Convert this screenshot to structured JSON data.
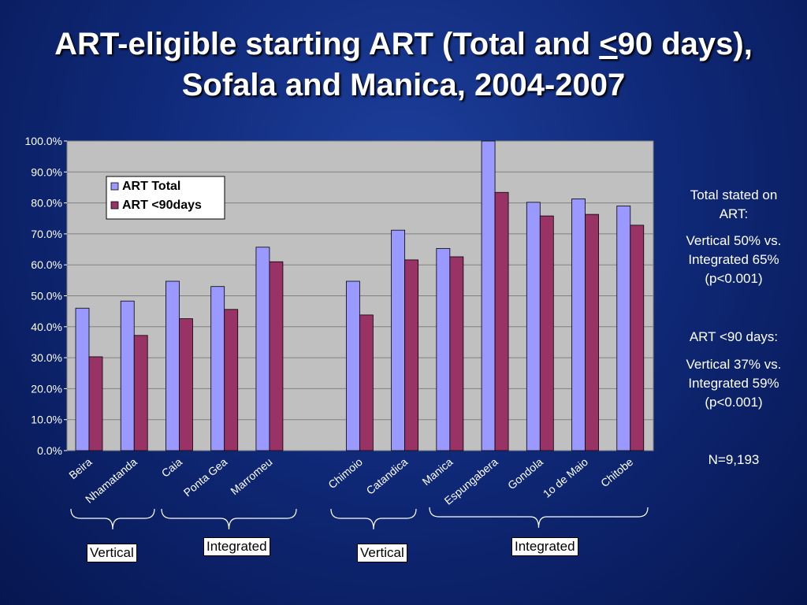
{
  "slide": {
    "title_part1": "ART-eligible starting ART (Total and ",
    "title_underline": "<",
    "title_part2": "90 days), Sofala and Manica, 2004-2007"
  },
  "notes": {
    "total_heading": "Total stated on ART:",
    "total_detail": "Vertical 50% vs. Integrated 65% (p<0.001)",
    "days_heading": "ART <90 days:",
    "days_detail": "Vertical 37% vs. Integrated 59% (p<0.001)",
    "n": "N=9,193"
  },
  "groups": [
    {
      "label": "Vertical"
    },
    {
      "label": "Integrated"
    },
    {
      "label": "Vertical"
    },
    {
      "label": "Integrated"
    }
  ],
  "chart_data": {
    "type": "bar",
    "categories": [
      "Beira",
      "Nhamatanda",
      "Caia",
      "Ponta Gea",
      "Marromeu",
      "",
      "Chimoio",
      "Catandica",
      "Manica",
      "Espungabera",
      "Gondola",
      "1o de Maio",
      "Chitobe"
    ],
    "series": [
      {
        "name": "ART Total",
        "color": "#9999ff",
        "values": [
          46,
          48.3,
          54.7,
          53,
          65.7,
          null,
          54.7,
          71.2,
          65.3,
          100,
          80.2,
          81.3,
          79
        ]
      },
      {
        "name": "ART <90days",
        "color": "#993366",
        "values": [
          30.3,
          37.2,
          42.6,
          45.6,
          61,
          null,
          43.8,
          61.6,
          62.6,
          83.4,
          75.8,
          76.3,
          72.8
        ]
      }
    ],
    "ylim": [
      0,
      100
    ],
    "yticks": [
      "0.0%",
      "10.0%",
      "20.0%",
      "30.0%",
      "40.0%",
      "50.0%",
      "60.0%",
      "70.0%",
      "80.0%",
      "90.0%",
      "100.0%"
    ],
    "grid": true,
    "legend": "top-left",
    "plot_color": "#c0c0c0"
  }
}
